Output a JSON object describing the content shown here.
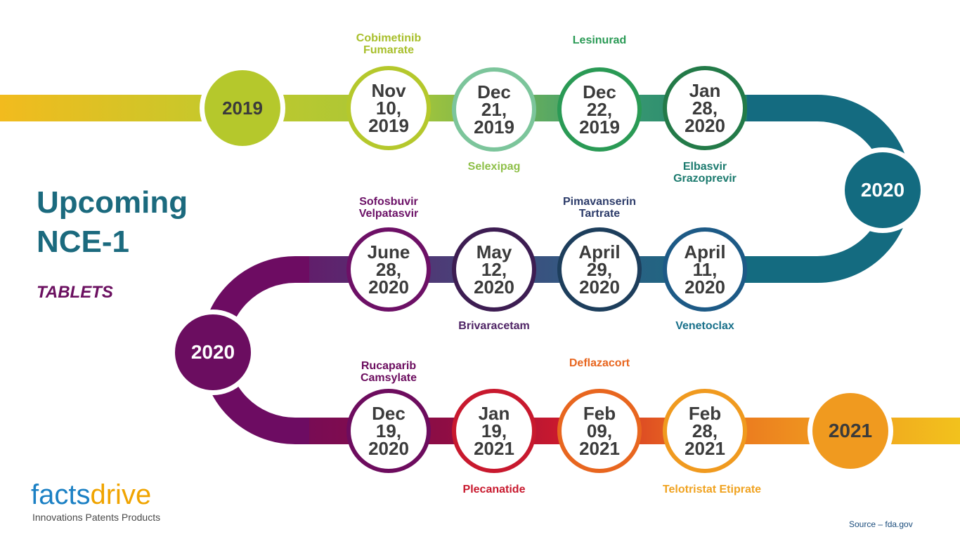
{
  "title": {
    "line1": "Upcoming",
    "line2": "NCE-1"
  },
  "subtitle": "TABLETS",
  "logo": {
    "part1": "facts",
    "part2": "drive",
    "tagline": "Innovations Patents Products"
  },
  "source": "Source – fda.gov",
  "colors": {
    "title": "#1b6a7e",
    "subtitle": "#6b1060",
    "logo_facts": "#1b80c4",
    "logo_drive": "#f0a400"
  },
  "years": [
    {
      "label": "2019",
      "fill": "#b5c82c",
      "text_color": "#3b3b3b"
    },
    {
      "label": "2020",
      "fill": "#136b80",
      "text_color": "#ffffff"
    },
    {
      "label": "2020",
      "fill": "#6b0d60",
      "text_color": "#ffffff"
    },
    {
      "label": "2021",
      "fill": "#f09a1f",
      "text_color": "#3b3b3b"
    }
  ],
  "milestones": [
    {
      "month": "Nov",
      "day": "10,",
      "year": "2019",
      "ring": "#b5c82c",
      "drug": "Cobimetinib\nFumarate",
      "drug_color": "#a8bf2b"
    },
    {
      "month": "Dec",
      "day": "21,",
      "year": "2019",
      "ring": "#7cc59b",
      "drug": "Selexipag",
      "drug_color": "#8fc04a"
    },
    {
      "month": "Dec",
      "day": "22,",
      "year": "2019",
      "ring": "#2a9a55",
      "drug": "Lesinurad",
      "drug_color": "#2a9a55"
    },
    {
      "month": "Jan",
      "day": "28,",
      "year": "2020",
      "ring": "#237a48",
      "drug": "Elbasvir\nGrazoprevir",
      "drug_color": "#1b7a6e"
    },
    {
      "month": "April",
      "day": "11,",
      "year": "2020",
      "ring": "#1d5a86",
      "drug": "Venetoclax",
      "drug_color": "#18708a"
    },
    {
      "month": "April",
      "day": "29,",
      "year": "2020",
      "ring": "#1d3e5c",
      "drug": "Pimavanserin\nTartrate",
      "drug_color": "#2d3c6a"
    },
    {
      "month": "May",
      "day": "12,",
      "year": "2020",
      "ring": "#3d1d52",
      "drug": "Brivaracetam",
      "drug_color": "#4f2465"
    },
    {
      "month": "June",
      "day": "28,",
      "year": "2020",
      "ring": "#6d1066",
      "drug": "Sofosbuvir\nVelpatasvir",
      "drug_color": "#6b1066"
    },
    {
      "month": "Dec",
      "day": "19,",
      "year": "2020",
      "ring": "#6d0c5e",
      "drug": "Rucaparib\nCamsylate",
      "drug_color": "#6b0c5e"
    },
    {
      "month": "Jan",
      "day": "19,",
      "year": "2021",
      "ring": "#c8192e",
      "drug": "Plecanatide",
      "drug_color": "#c8192e"
    },
    {
      "month": "Feb",
      "day": "09,",
      "year": "2021",
      "ring": "#e8661f",
      "drug": "Deflazacort",
      "drug_color": "#e8661f"
    },
    {
      "month": "Feb",
      "day": "28,",
      "year": "2021",
      "ring": "#f09a1f",
      "drug": "Telotristat Etiprate",
      "drug_color": "#f0a21f"
    }
  ]
}
